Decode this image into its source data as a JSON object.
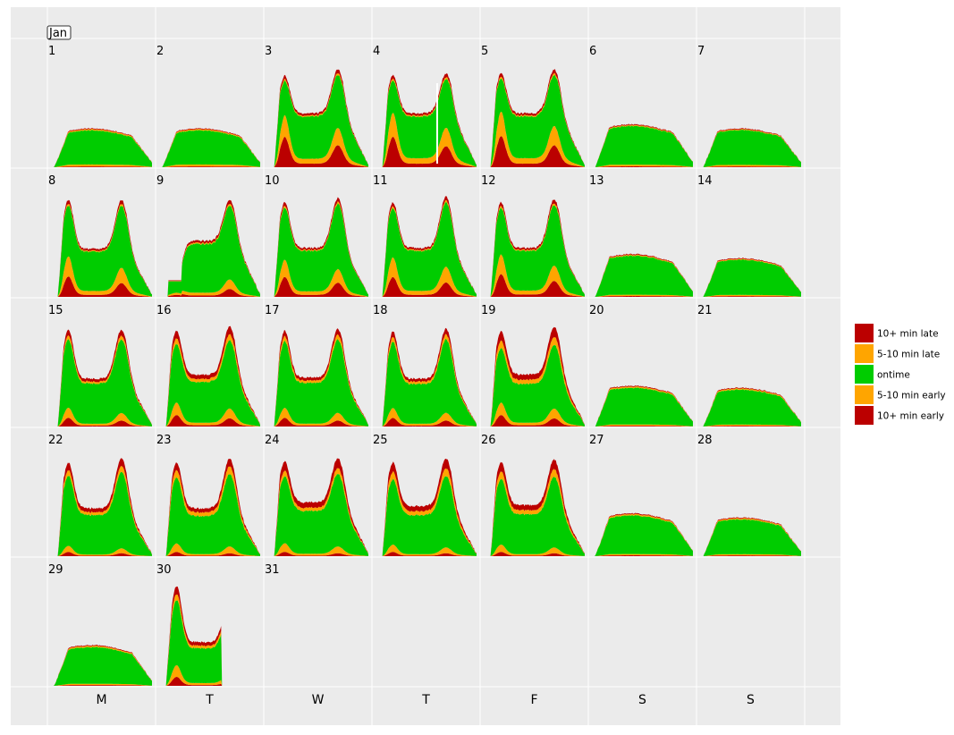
{
  "chart_data": {
    "type": "area",
    "title": "",
    "xlabel": "",
    "ylabel": "",
    "month_label": "Jan",
    "weekday_labels": [
      "M",
      "T",
      "W",
      "T",
      "F",
      "S",
      "S"
    ],
    "first_weekday_index": 0,
    "days_in_month": 31,
    "grid": true,
    "legend_position": "right",
    "legend": [
      {
        "name": "10+ min late",
        "color": "#BB0000"
      },
      {
        "name": "5-10 min late",
        "color": "#FFA500"
      },
      {
        "name": "ontime",
        "color": "#00CC00"
      },
      {
        "name": "5-10 min early",
        "color": "#FFA500"
      },
      {
        "name": "10+ min early",
        "color": "#BB0000"
      }
    ],
    "series_stack_order_bottom_to_top": [
      "10+ min early",
      "5-10 min early",
      "ontime",
      "5-10 min late",
      "10+ min late"
    ],
    "colors": {
      "panel_bg": "#EBEBEB",
      "grid": "#FFFFFF",
      "dark_red": "#BB0000",
      "orange": "#FFA500",
      "green": "#00CC00"
    },
    "days": [
      {
        "day": 1,
        "profile": "weekend",
        "total": 0.38,
        "early10": 0.02,
        "early5": 0.05,
        "late5": 0.03,
        "late10": 0.02
      },
      {
        "day": 2,
        "profile": "weekend",
        "total": 0.38,
        "early10": 0.02,
        "early5": 0.05,
        "late5": 0.03,
        "late10": 0.02
      },
      {
        "day": 3,
        "profile": "weekday",
        "am": 0.9,
        "pm": 0.96,
        "mid": 0.53,
        "early10": 0.22,
        "early5": 0.18,
        "late5": 0.02,
        "late10": 0.04
      },
      {
        "day": 4,
        "profile": "weekday_gap",
        "am": 0.9,
        "pm": 0.92,
        "mid": 0.53,
        "early10": 0.22,
        "early5": 0.2,
        "late5": 0.02,
        "late10": 0.04
      },
      {
        "day": 5,
        "profile": "weekday",
        "am": 0.92,
        "pm": 0.96,
        "mid": 0.53,
        "early10": 0.22,
        "early5": 0.2,
        "late5": 0.02,
        "late10": 0.04
      },
      {
        "day": 6,
        "profile": "weekend",
        "total": 0.42,
        "early10": 0.02,
        "early5": 0.04,
        "late5": 0.02,
        "late10": 0.02
      },
      {
        "day": 7,
        "profile": "weekend",
        "total": 0.38,
        "early10": 0.02,
        "early5": 0.04,
        "late5": 0.02,
        "late10": 0.02
      },
      {
        "day": 8,
        "profile": "weekday",
        "am": 0.95,
        "pm": 0.95,
        "mid": 0.47,
        "early10": 0.14,
        "early5": 0.16,
        "late5": 0.02,
        "late10": 0.04
      },
      {
        "day": 9,
        "profile": "weekday_outage",
        "am": 0.18,
        "pm": 0.95,
        "mid": 0.55,
        "early10": 0.08,
        "early5": 0.1,
        "late5": 0.02,
        "late10": 0.04
      },
      {
        "day": 10,
        "profile": "weekday",
        "am": 0.93,
        "pm": 0.97,
        "mid": 0.48,
        "early10": 0.14,
        "early5": 0.14,
        "late5": 0.02,
        "late10": 0.04
      },
      {
        "day": 11,
        "profile": "weekday",
        "am": 0.93,
        "pm": 0.98,
        "mid": 0.48,
        "early10": 0.14,
        "early5": 0.16,
        "late5": 0.02,
        "late10": 0.04
      },
      {
        "day": 12,
        "profile": "weekday",
        "am": 0.93,
        "pm": 0.96,
        "mid": 0.48,
        "early10": 0.16,
        "early5": 0.16,
        "late5": 0.02,
        "late10": 0.04
      },
      {
        "day": 13,
        "profile": "weekend",
        "total": 0.42,
        "early10": 0.02,
        "early5": 0.03,
        "late5": 0.02,
        "late10": 0.02
      },
      {
        "day": 14,
        "profile": "weekend",
        "total": 0.38,
        "early10": 0.02,
        "early5": 0.03,
        "late5": 0.02,
        "late10": 0.02
      },
      {
        "day": 15,
        "profile": "weekday",
        "am": 0.95,
        "pm": 0.95,
        "mid": 0.47,
        "early10": 0.06,
        "early5": 0.08,
        "late5": 0.04,
        "late10": 0.06
      },
      {
        "day": 16,
        "profile": "weekday",
        "am": 0.94,
        "pm": 0.98,
        "mid": 0.51,
        "early10": 0.08,
        "early5": 0.1,
        "late5": 0.06,
        "late10": 0.08
      },
      {
        "day": 17,
        "profile": "weekday",
        "am": 0.94,
        "pm": 0.96,
        "mid": 0.48,
        "early10": 0.06,
        "early5": 0.08,
        "late5": 0.05,
        "late10": 0.06
      },
      {
        "day": 18,
        "profile": "weekday",
        "am": 0.93,
        "pm": 0.96,
        "mid": 0.47,
        "early10": 0.06,
        "early5": 0.08,
        "late5": 0.05,
        "late10": 0.06
      },
      {
        "day": 19,
        "profile": "weekday",
        "am": 0.93,
        "pm": 0.98,
        "mid": 0.51,
        "early10": 0.08,
        "early5": 0.1,
        "late5": 0.08,
        "late10": 0.1
      },
      {
        "day": 20,
        "profile": "weekend",
        "total": 0.4,
        "early10": 0.02,
        "early5": 0.03,
        "late5": 0.03,
        "late10": 0.02
      },
      {
        "day": 21,
        "profile": "weekend",
        "total": 0.38,
        "early10": 0.02,
        "early5": 0.03,
        "late5": 0.03,
        "late10": 0.02
      },
      {
        "day": 22,
        "profile": "weekday",
        "am": 0.92,
        "pm": 0.96,
        "mid": 0.47,
        "early10": 0.03,
        "early5": 0.05,
        "late5": 0.06,
        "late10": 0.08
      },
      {
        "day": 23,
        "profile": "weekday",
        "am": 0.92,
        "pm": 0.96,
        "mid": 0.47,
        "early10": 0.03,
        "early5": 0.07,
        "late5": 0.08,
        "late10": 0.08
      },
      {
        "day": 24,
        "profile": "weekday",
        "am": 0.93,
        "pm": 0.96,
        "mid": 0.53,
        "early10": 0.03,
        "early5": 0.07,
        "late5": 0.06,
        "late10": 0.1
      },
      {
        "day": 25,
        "profile": "weekday",
        "am": 0.92,
        "pm": 0.96,
        "mid": 0.49,
        "early10": 0.03,
        "early5": 0.06,
        "late5": 0.08,
        "late10": 0.1
      },
      {
        "day": 26,
        "profile": "weekday",
        "am": 0.92,
        "pm": 0.95,
        "mid": 0.5,
        "early10": 0.03,
        "early5": 0.06,
        "late5": 0.08,
        "late10": 0.1
      },
      {
        "day": 27,
        "profile": "weekend",
        "total": 0.42,
        "early10": 0.02,
        "early5": 0.03,
        "late5": 0.03,
        "late10": 0.02
      },
      {
        "day": 28,
        "profile": "weekend",
        "total": 0.38,
        "early10": 0.02,
        "early5": 0.03,
        "late5": 0.03,
        "late10": 0.02
      },
      {
        "day": 29,
        "profile": "weekend",
        "total": 0.4,
        "early10": 0.02,
        "early5": 0.03,
        "late5": 0.03,
        "late10": 0.02
      },
      {
        "day": 30,
        "profile": "weekday_partial",
        "am": 0.98,
        "pm": 0.84,
        "mid": 0.43,
        "early10": 0.06,
        "early5": 0.09,
        "late5": 0.06,
        "late10": 0.08
      },
      {
        "day": 31,
        "profile": "empty"
      }
    ]
  }
}
